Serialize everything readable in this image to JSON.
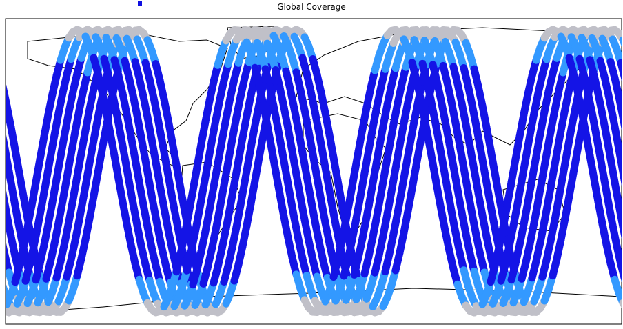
{
  "header": {
    "title": "Global Coverage"
  }
}
